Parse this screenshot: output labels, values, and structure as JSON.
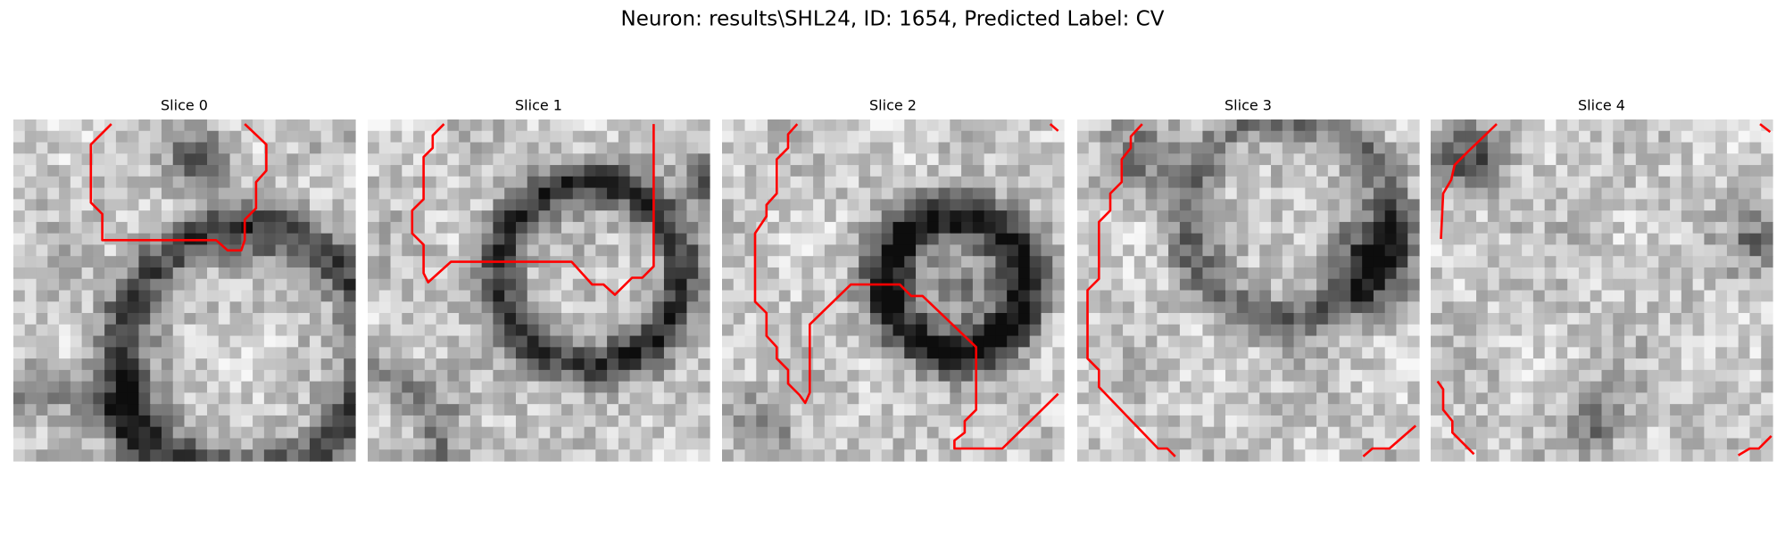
{
  "title": "Neuron: results\\SHL24, ID: 1654, Predicted Label: CV",
  "panels": [
    {
      "title": "Slice 0"
    },
    {
      "title": "Slice 1"
    },
    {
      "title": "Slice 2"
    },
    {
      "title": "Slice 3"
    },
    {
      "title": "Slice 4"
    }
  ]
}
